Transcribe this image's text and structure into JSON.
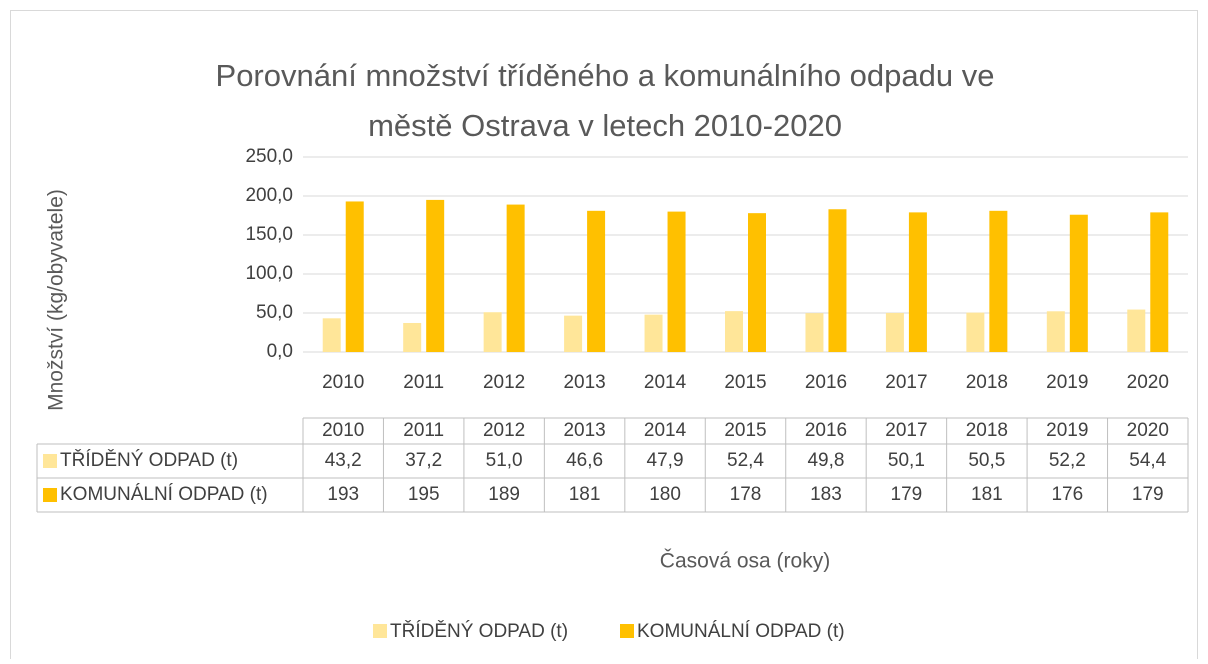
{
  "chart_data": {
    "type": "bar",
    "title": [
      "Porovnání množství tříděného a komunálního odpadu ve",
      "městě Ostrava v letech 2010-2020"
    ],
    "x_label": "Časová osa (roky)",
    "y_label": "Množství (kg/obyvatele)",
    "categories": [
      "2010",
      "2011",
      "2012",
      "2013",
      "2014",
      "2015",
      "2016",
      "2017",
      "2018",
      "2019",
      "2020"
    ],
    "series": [
      {
        "name": "TŘÍDĚNÝ ODPAD (t)",
        "color": "#FFE699",
        "values": [
          43.2,
          37.2,
          51.0,
          46.6,
          47.9,
          52.4,
          49.8,
          50.1,
          50.5,
          52.2,
          54.4
        ],
        "value_labels": [
          "43,2",
          "37,2",
          "51,0",
          "46,6",
          "47,9",
          "52,4",
          "49,8",
          "50,1",
          "50,5",
          "52,2",
          "54,4"
        ]
      },
      {
        "name": "KOMUNÁLNÍ ODPAD (t)",
        "color": "#FFC000",
        "values": [
          193,
          195,
          189,
          181,
          180,
          178,
          183,
          179,
          181,
          176,
          179
        ]
      }
    ],
    "ylim": [
      0,
      250
    ],
    "yticks": [
      {
        "value": 0,
        "label": "0,0"
      },
      {
        "value": 50,
        "label": "50,0"
      },
      {
        "value": 100,
        "label": "100,0"
      },
      {
        "value": 150,
        "label": "150,0"
      },
      {
        "value": 200,
        "label": "200,0"
      },
      {
        "value": 250,
        "label": "250,0"
      }
    ],
    "grid": true,
    "legend": "bottom",
    "data_table": true
  }
}
